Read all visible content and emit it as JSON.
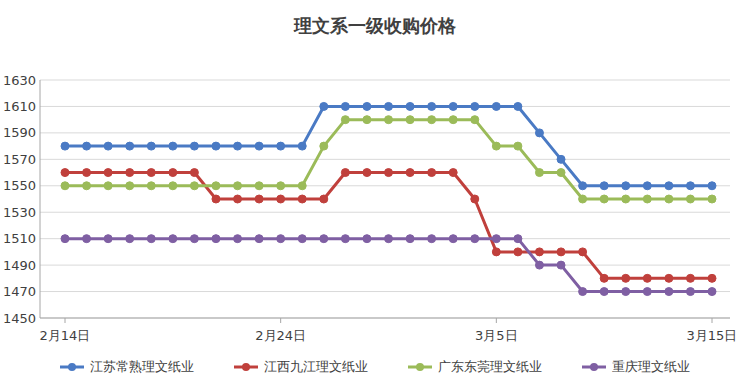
{
  "chart_data": {
    "type": "line",
    "title": "理文系一级收购价格",
    "categories": [
      "2月14日",
      null,
      null,
      null,
      null,
      null,
      null,
      null,
      null,
      null,
      "2月24日",
      null,
      null,
      null,
      null,
      null,
      null,
      null,
      null,
      null,
      "3月5日",
      null,
      null,
      null,
      null,
      null,
      null,
      null,
      null,
      null,
      "3月15日"
    ],
    "series": [
      {
        "name": "江苏常熟理文纸业",
        "color": "#4a7ac4",
        "values": [
          1580,
          1580,
          1580,
          1580,
          1580,
          1580,
          1580,
          1580,
          1580,
          1580,
          1580,
          1580,
          1610,
          1610,
          1610,
          1610,
          1610,
          1610,
          1610,
          1610,
          1610,
          1610,
          1590,
          1570,
          1550,
          1550,
          1550,
          1550,
          1550,
          1550,
          1550
        ]
      },
      {
        "name": "江西九江理文纸业",
        "color": "#c0403c",
        "values": [
          1560,
          1560,
          1560,
          1560,
          1560,
          1560,
          1560,
          1540,
          1540,
          1540,
          1540,
          1540,
          1540,
          1560,
          1560,
          1560,
          1560,
          1560,
          1560,
          1540,
          1500,
          1500,
          1500,
          1500,
          1500,
          1480,
          1480,
          1480,
          1480,
          1480,
          1480
        ]
      },
      {
        "name": "广东东莞理文纸业",
        "color": "#9bbb59",
        "values": [
          1550,
          1550,
          1550,
          1550,
          1550,
          1550,
          1550,
          1550,
          1550,
          1550,
          1550,
          1550,
          1580,
          1600,
          1600,
          1600,
          1600,
          1600,
          1600,
          1600,
          1580,
          1580,
          1560,
          1560,
          1540,
          1540,
          1540,
          1540,
          1540,
          1540,
          1540
        ]
      },
      {
        "name": "重庆理文纸业",
        "color": "#7f5fa3",
        "values": [
          1510,
          1510,
          1510,
          1510,
          1510,
          1510,
          1510,
          1510,
          1510,
          1510,
          1510,
          1510,
          1510,
          1510,
          1510,
          1510,
          1510,
          1510,
          1510,
          1510,
          1510,
          1510,
          1490,
          1490,
          1470,
          1470,
          1470,
          1470,
          1470,
          1470,
          1470
        ]
      }
    ],
    "ylim": [
      1450,
      1630
    ],
    "yticks": [
      1450,
      1470,
      1490,
      1510,
      1530,
      1550,
      1570,
      1590,
      1610,
      1630
    ],
    "grid": true,
    "legend": "bottom",
    "marker": "circle"
  }
}
